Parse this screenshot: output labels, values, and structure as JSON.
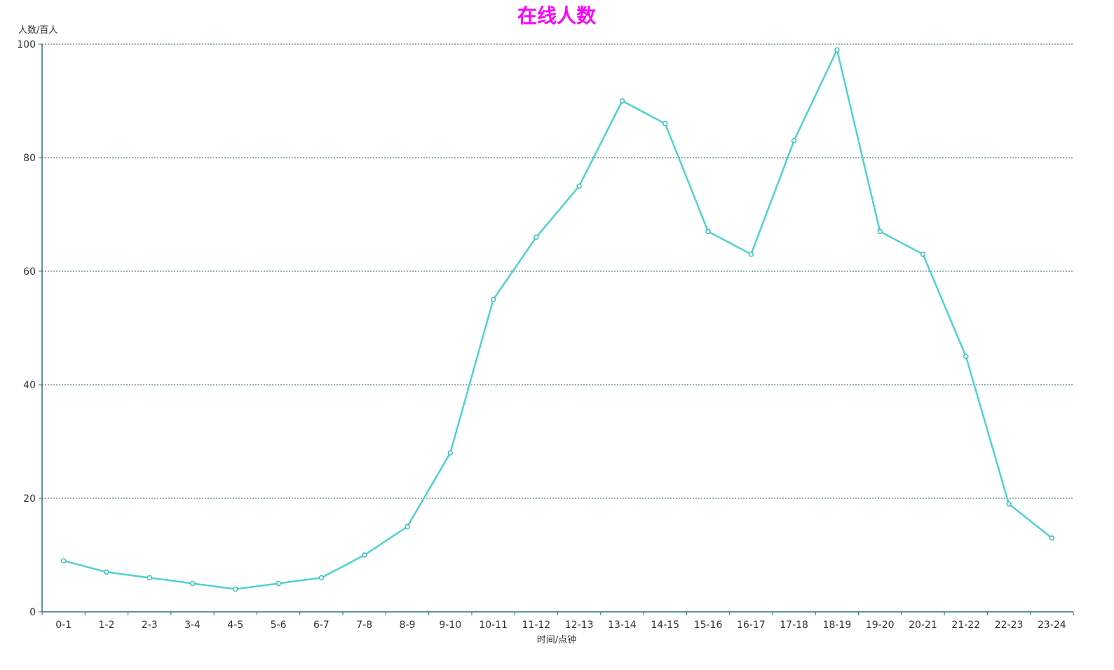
{
  "chart_data": {
    "type": "line",
    "title": "在线人数",
    "xlabel": "时间/点钟",
    "ylabel": "人数/百人",
    "categories": [
      "0-1",
      "1-2",
      "2-3",
      "3-4",
      "4-5",
      "5-6",
      "6-7",
      "7-8",
      "8-9",
      "9-10",
      "10-11",
      "11-12",
      "12-13",
      "13-14",
      "14-15",
      "15-16",
      "16-17",
      "17-18",
      "18-19",
      "19-20",
      "20-21",
      "21-22",
      "22-23",
      "23-24"
    ],
    "series": [
      {
        "values": [
          9,
          7,
          6,
          5,
          4,
          5,
          6,
          10,
          15,
          28,
          55,
          66,
          75,
          90,
          86,
          67,
          63,
          83,
          99,
          67,
          63,
          45,
          19,
          13
        ]
      }
    ],
    "ylim": [
      0,
      100
    ],
    "yticks": [
      0,
      20,
      40,
      60,
      80,
      100
    ],
    "grid": true,
    "colors": {
      "title": "#ff00ff",
      "series": "#4fd2d2",
      "axis": "#2f6f7f"
    }
  }
}
